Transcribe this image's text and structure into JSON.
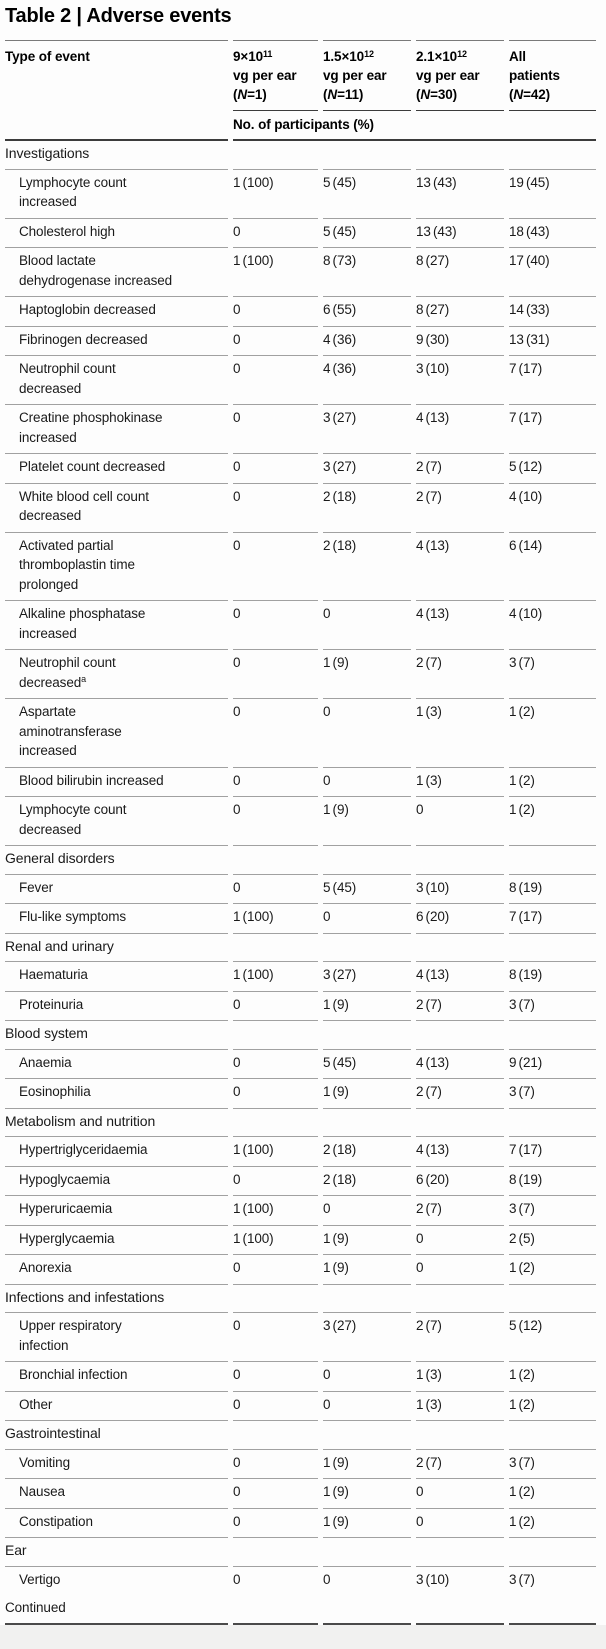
{
  "page": {
    "title": "Table 2 | Adverse events"
  },
  "colors": {
    "rule_title": "#7a7a7a",
    "rule_dark": "#3c3c3c",
    "rule_light": "#a1a1a1",
    "rule_final": "#4a4a4a",
    "footer_bg": "#f1f1f0",
    "text": "#1a1a1a"
  },
  "table": {
    "col1_header": "Type of event",
    "subheader": "No. of participants (%)",
    "continued": "Continued",
    "columns": [
      {
        "label_text": "9×10¹¹ vg per ear (N=1)",
        "header_html": "9×10<sup>11</sup><br>vg per ear<br>(<i>N</i>=1)"
      },
      {
        "label_text": "1.5×10¹² vg per ear (N=11)",
        "header_html": "1.5×10<sup>12</sup><br>vg per ear<br>(<i>N</i>=11)"
      },
      {
        "label_text": "2.1×10¹² vg per ear (N=30)",
        "header_html": "2.1×10<sup>12</sup><br>vg per ear<br>(<i>N</i>=30)"
      },
      {
        "label_text": "All patients (N=42)",
        "header_html": "All<br>patients<br>(<i>N</i>=42)"
      }
    ],
    "rows": [
      {
        "type": "section",
        "label": "Investigations"
      },
      {
        "type": "item",
        "label_html": "Lymphocyte count increased",
        "values": [
          "1 (100)",
          "5 (45)",
          "13 (43)",
          "19 (45)"
        ]
      },
      {
        "type": "item",
        "label_html": "Cholesterol high",
        "values": [
          "0",
          "5 (45)",
          "13 (43)",
          "18 (43)"
        ]
      },
      {
        "type": "item",
        "label_html": "Blood lactate dehydrogenase increased",
        "values": [
          "1 (100)",
          "8 (73)",
          "8 (27)",
          "17 (40)"
        ]
      },
      {
        "type": "item",
        "label_html": "Haptoglobin decreased",
        "values": [
          "0",
          "6 (55)",
          "8 (27)",
          "14 (33)"
        ]
      },
      {
        "type": "item",
        "label_html": "Fibrinogen decreased",
        "values": [
          "0",
          "4 (36)",
          "9 (30)",
          "13 (31)"
        ]
      },
      {
        "type": "item",
        "label_html": "Neutrophil count decreased",
        "values": [
          "0",
          "4 (36)",
          "3 (10)",
          "7 (17)"
        ]
      },
      {
        "type": "item",
        "label_html": "Creatine phosphokinase increased",
        "values": [
          "0",
          "3 (27)",
          "4 (13)",
          "7 (17)"
        ]
      },
      {
        "type": "item",
        "label_html": "Platelet count decreased",
        "values": [
          "0",
          "3 (27)",
          "2 (7)",
          "5 (12)"
        ]
      },
      {
        "type": "item",
        "label_html": "White blood cell count decreased",
        "values": [
          "0",
          "2 (18)",
          "2 (7)",
          "4 (10)"
        ]
      },
      {
        "type": "item",
        "label_html": "Activated partial thromboplastin time prolonged",
        "values": [
          "0",
          "2 (18)",
          "4 (13)",
          "6 (14)"
        ]
      },
      {
        "type": "item",
        "label_html": "Alkaline phosphatase increased",
        "values": [
          "0",
          "0",
          "4 (13)",
          "4 (10)"
        ]
      },
      {
        "type": "item",
        "label_html": "Neutrophil count decreased<sup>a</sup>",
        "values": [
          "0",
          "1 (9)",
          "2 (7)",
          "3 (7)"
        ]
      },
      {
        "type": "item",
        "label_html": "Aspartate aminotransferase increased",
        "values": [
          "0",
          "0",
          "1 (3)",
          "1 (2)"
        ]
      },
      {
        "type": "item",
        "label_html": "Blood bilirubin increased",
        "values": [
          "0",
          "0",
          "1 (3)",
          "1 (2)"
        ]
      },
      {
        "type": "item",
        "label_html": "Lymphocyte count decreased",
        "values": [
          "0",
          "1 (9)",
          "0",
          "1 (2)"
        ]
      },
      {
        "type": "section",
        "label": "General disorders"
      },
      {
        "type": "item",
        "label_html": "Fever",
        "values": [
          "0",
          "5 (45)",
          "3 (10)",
          "8 (19)"
        ]
      },
      {
        "type": "item",
        "label_html": "Flu-like symptoms",
        "values": [
          "1 (100)",
          "0",
          "6 (20)",
          "7 (17)"
        ]
      },
      {
        "type": "section",
        "label": "Renal and urinary"
      },
      {
        "type": "item",
        "label_html": "Haematuria",
        "values": [
          "1 (100)",
          "3 (27)",
          "4 (13)",
          "8 (19)"
        ]
      },
      {
        "type": "item",
        "label_html": "Proteinuria",
        "values": [
          "0",
          "1 (9)",
          "2 (7)",
          "3 (7)"
        ]
      },
      {
        "type": "section",
        "label": "Blood system"
      },
      {
        "type": "item",
        "label_html": "Anaemia",
        "values": [
          "0",
          "5 (45)",
          "4 (13)",
          "9 (21)"
        ]
      },
      {
        "type": "item",
        "label_html": "Eosinophilia",
        "values": [
          "0",
          "1 (9)",
          "2 (7)",
          "3 (7)"
        ]
      },
      {
        "type": "section",
        "label": "Metabolism and nutrition"
      },
      {
        "type": "item",
        "label_html": "Hypertriglyceridaemia",
        "values": [
          "1 (100)",
          "2 (18)",
          "4 (13)",
          "7 (17)"
        ]
      },
      {
        "type": "item",
        "label_html": "Hypoglycaemia",
        "values": [
          "0",
          "2 (18)",
          "6 (20)",
          "8 (19)"
        ]
      },
      {
        "type": "item",
        "label_html": "Hyperuricaemia",
        "values": [
          "1 (100)",
          "0",
          "2 (7)",
          "3 (7)"
        ]
      },
      {
        "type": "item",
        "label_html": "Hyperglycaemia",
        "values": [
          "1 (100)",
          "1 (9)",
          "0",
          "2 (5)"
        ]
      },
      {
        "type": "item",
        "label_html": "Anorexia",
        "values": [
          "0",
          "1 (9)",
          "0",
          "1 (2)"
        ]
      },
      {
        "type": "section",
        "label": "Infections and infestations"
      },
      {
        "type": "item",
        "label_html": "Upper respiratory infection",
        "values": [
          "0",
          "3 (27)",
          "2 (7)",
          "5 (12)"
        ]
      },
      {
        "type": "item",
        "label_html": "Bronchial infection",
        "values": [
          "0",
          "0",
          "1 (3)",
          "1 (2)"
        ]
      },
      {
        "type": "item",
        "label_html": "Other",
        "values": [
          "0",
          "0",
          "1 (3)",
          "1 (2)"
        ]
      },
      {
        "type": "section",
        "label": "Gastrointestinal"
      },
      {
        "type": "item",
        "label_html": "Vomiting",
        "values": [
          "0",
          "1 (9)",
          "2 (7)",
          "3 (7)"
        ]
      },
      {
        "type": "item",
        "label_html": "Nausea",
        "values": [
          "0",
          "1 (9)",
          "0",
          "1 (2)"
        ]
      },
      {
        "type": "item",
        "label_html": "Constipation",
        "values": [
          "0",
          "1 (9)",
          "0",
          "1 (2)"
        ]
      },
      {
        "type": "section",
        "label": "Ear"
      },
      {
        "type": "item",
        "label_html": "Vertigo",
        "values": [
          "0",
          "0",
          "3 (10)",
          "3 (7)"
        ]
      }
    ]
  }
}
